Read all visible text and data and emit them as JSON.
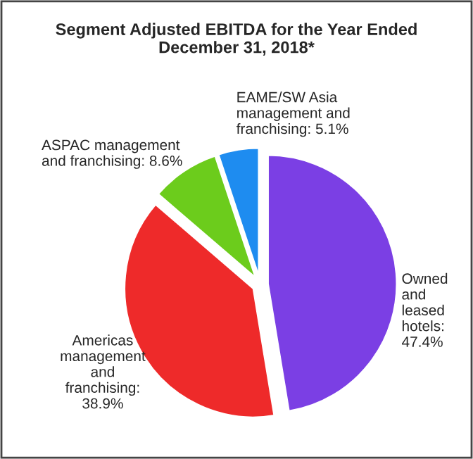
{
  "chart_data": {
    "type": "pie",
    "title": "Segment Adjusted EBITDA for the Year Ended\nDecember 31, 2018*",
    "categories": [
      "Owned\nand\nleased\nhotels:\n47.4%",
      "Americas\nmanagement\nand\nfranchising:\n38.9%",
      "ASPAC management\nand franchising: 8.6%",
      "EAME/SW Asia\nmanagement and\nfranchising: 5.1%"
    ],
    "values": [
      47.4,
      38.9,
      8.6,
      5.1
    ],
    "colors": [
      "#7b3fe4",
      "#ee2a2a",
      "#6ccc1c",
      "#1e8cf0"
    ]
  }
}
